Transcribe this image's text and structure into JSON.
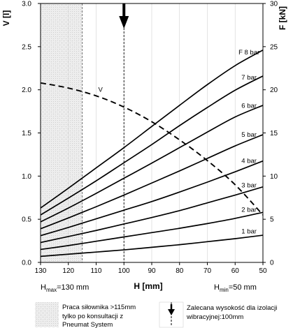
{
  "chart_data": {
    "type": "line",
    "x": [
      130,
      120,
      110,
      100,
      90,
      80,
      70,
      60,
      50
    ],
    "x_tick_labels": [
      "130",
      "120",
      "110",
      "100",
      "90",
      "80",
      "70",
      "60",
      "50"
    ],
    "xlim": [
      130,
      50
    ],
    "xlabel": "H [mm]",
    "y_left": {
      "label": "V [l]",
      "lim": [
        0,
        3
      ],
      "tick_labels": [
        "0.0",
        "0.5",
        "1.0",
        "1.5",
        "2.0",
        "2.5",
        "3.0"
      ]
    },
    "y_right": {
      "label": "F [kN]",
      "lim": [
        0,
        30
      ],
      "tick_labels": [
        "0",
        "5",
        "10",
        "15",
        "20",
        "25",
        "30"
      ]
    },
    "grid": "vertical",
    "series": [
      {
        "name": "1 bar",
        "label": "1 bar",
        "axis": "right",
        "style": "solid",
        "values": [
          0.7,
          0.95,
          1.2,
          1.45,
          1.75,
          2.05,
          2.4,
          2.75,
          3.15
        ]
      },
      {
        "name": "2 bar",
        "label": "2 bar",
        "axis": "right",
        "style": "solid",
        "values": [
          1.5,
          1.95,
          2.45,
          2.95,
          3.45,
          3.95,
          4.5,
          5.1,
          5.8
        ]
      },
      {
        "name": "3 bar",
        "label": "3 bar",
        "axis": "right",
        "style": "solid",
        "values": [
          2.3,
          3.0,
          3.7,
          4.45,
          5.2,
          6.0,
          6.9,
          7.8,
          8.75
        ]
      },
      {
        "name": "4 bar",
        "label": "4 bar",
        "axis": "right",
        "style": "solid",
        "values": [
          3.1,
          4.05,
          5.05,
          6.05,
          7.05,
          8.15,
          9.3,
          10.5,
          11.75
        ]
      },
      {
        "name": "5 bar",
        "label": "5 bar",
        "axis": "right",
        "style": "solid",
        "values": [
          3.9,
          5.15,
          6.45,
          7.8,
          9.2,
          10.6,
          12.05,
          13.5,
          14.8
        ]
      },
      {
        "name": "6 bar",
        "label": "6 bar",
        "axis": "right",
        "style": "solid",
        "values": [
          4.7,
          6.3,
          8.0,
          9.75,
          11.5,
          13.3,
          15.1,
          16.85,
          18.2
        ]
      },
      {
        "name": "7 bar",
        "label": "7 bar",
        "axis": "right",
        "style": "solid",
        "values": [
          5.5,
          7.45,
          9.45,
          11.55,
          13.65,
          15.85,
          17.95,
          19.95,
          21.6
        ]
      },
      {
        "name": "8 bar",
        "label": "F 8 bar",
        "axis": "right",
        "style": "solid",
        "values": [
          6.3,
          8.6,
          10.95,
          13.3,
          15.75,
          18.2,
          20.6,
          22.8,
          24.6
        ]
      },
      {
        "name": "V",
        "label": "V",
        "axis": "left",
        "style": "dashed",
        "values": [
          2.08,
          2.02,
          1.93,
          1.8,
          1.63,
          1.42,
          1.18,
          0.9,
          0.55
        ]
      }
    ],
    "annotations": {
      "h_max": {
        "prefix": "H",
        "sub": "max",
        "suffix": "=130 mm",
        "x": 130
      },
      "h_min": {
        "prefix": "H",
        "sub": "min",
        "suffix": "=50 mm",
        "x": 50
      },
      "hatched_zone": {
        "from": 130,
        "to": 115
      },
      "recommended_height": {
        "x": 100
      }
    },
    "legend": [
      {
        "symbol": "hatch",
        "text_lines": [
          "Praca siłownika >115mm",
          "tylko po konsultacji z",
          "Pneumat System"
        ]
      },
      {
        "symbol": "arrow",
        "text_lines": [
          "Zalecana wysokość dla izolacji",
          "wibracyjnej:100mm"
        ]
      }
    ]
  }
}
